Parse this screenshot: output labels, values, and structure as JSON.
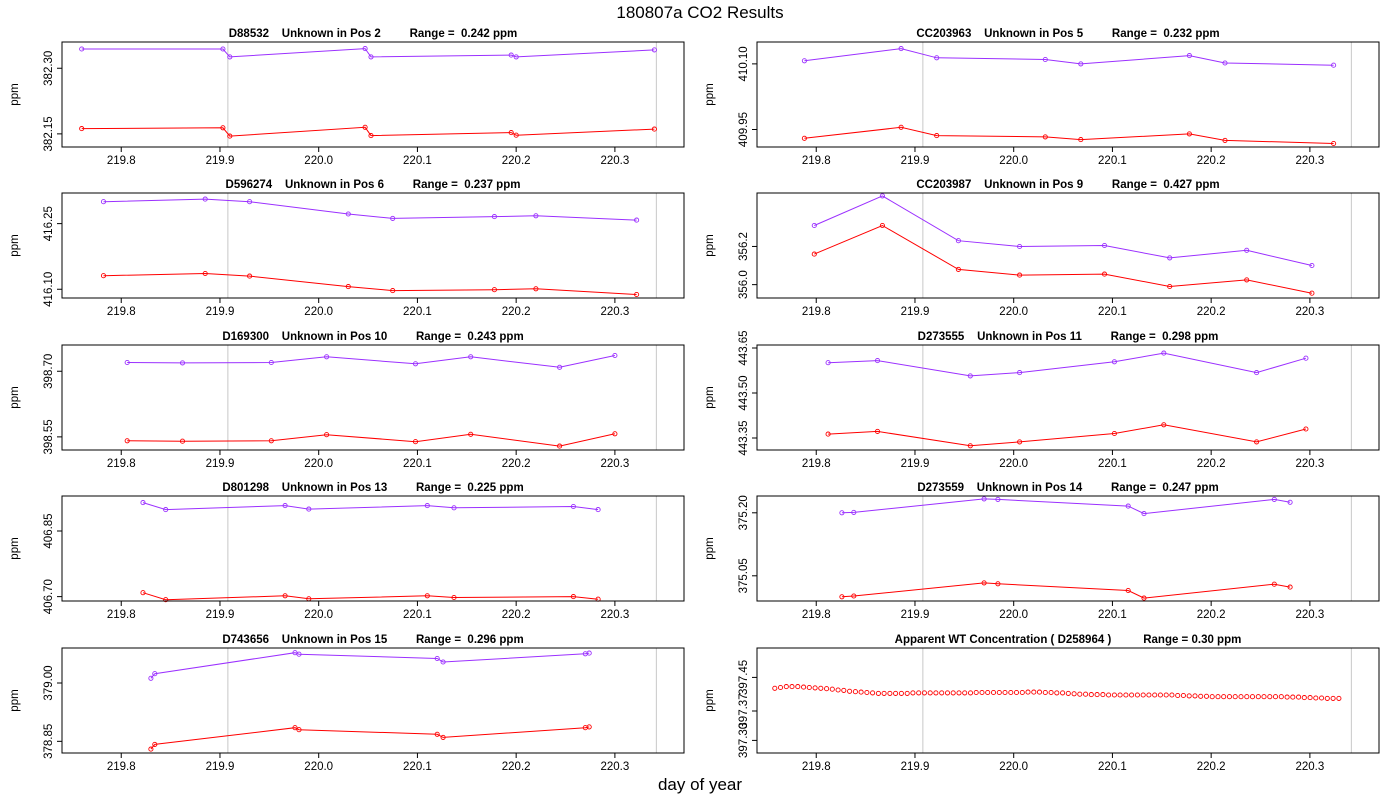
{
  "figure": {
    "title": "180807a  CO2 Results",
    "xlabel": "day of year"
  },
  "chart_data": [
    {
      "type": "line",
      "title": "D88532    Unknown in Pos 2         Range =  0.242 ppm",
      "ylabel": "ppm",
      "xlim": [
        219.74,
        220.37
      ],
      "ylim": [
        382.12,
        382.36
      ],
      "xticks": [
        "219.8",
        "219.9",
        "220.0",
        "220.1",
        "220.2",
        "220.3"
      ],
      "yticks": [
        "382.15",
        "382.30"
      ],
      "vlines": [
        219.908,
        220.342
      ],
      "series": [
        {
          "name": "upper",
          "color": "#9b30ff",
          "x": [
            219.76,
            219.903,
            219.91,
            220.047,
            220.053,
            220.195,
            220.2,
            220.34
          ],
          "y": [
            382.344,
            382.344,
            382.326,
            382.345,
            382.326,
            382.33,
            382.326,
            382.342
          ]
        },
        {
          "name": "lower",
          "color": "#ff0000",
          "x": [
            219.76,
            219.903,
            219.91,
            220.047,
            220.053,
            220.195,
            220.2,
            220.34
          ],
          "y": [
            382.162,
            382.164,
            382.145,
            382.165,
            382.146,
            382.153,
            382.147,
            382.161
          ]
        }
      ]
    },
    {
      "type": "line",
      "title": "CC203963    Unknown in Pos 5         Range =  0.232 ppm",
      "ylabel": "ppm",
      "xlim": [
        219.74,
        220.37
      ],
      "ylim": [
        409.91,
        410.15
      ],
      "xticks": [
        "219.8",
        "219.9",
        "220.0",
        "220.1",
        "220.2",
        "220.3"
      ],
      "yticks": [
        "409.95",
        "410.10"
      ],
      "vlines": [
        219.908,
        220.342
      ],
      "series": [
        {
          "name": "upper",
          "color": "#9b30ff",
          "x": [
            219.788,
            219.886,
            219.922,
            220.032,
            220.068,
            220.178,
            220.214,
            220.324
          ],
          "y": [
            410.107,
            410.135,
            410.114,
            410.11,
            410.1,
            410.119,
            410.102,
            410.097
          ]
        },
        {
          "name": "lower",
          "color": "#ff0000",
          "x": [
            219.788,
            219.886,
            219.922,
            220.032,
            220.068,
            220.178,
            220.214,
            220.324
          ],
          "y": [
            409.93,
            409.955,
            409.936,
            409.933,
            409.927,
            409.94,
            409.925,
            409.918
          ]
        }
      ]
    },
    {
      "type": "line",
      "title": "D596274    Unknown in Pos 6         Range =  0.237 ppm",
      "ylabel": "ppm",
      "xlim": [
        219.74,
        220.37
      ],
      "ylim": [
        416.08,
        416.32
      ],
      "xticks": [
        "219.8",
        "219.9",
        "220.0",
        "220.1",
        "220.2",
        "220.3"
      ],
      "yticks": [
        "416.10",
        "416.25"
      ],
      "vlines": [
        219.908,
        220.342
      ],
      "series": [
        {
          "name": "upper",
          "color": "#9b30ff",
          "x": [
            219.782,
            219.885,
            219.93,
            220.03,
            220.075,
            220.178,
            220.22,
            220.322
          ],
          "y": [
            416.3,
            416.306,
            416.3,
            416.272,
            416.262,
            416.266,
            416.268,
            416.258
          ]
        },
        {
          "name": "lower",
          "color": "#ff0000",
          "x": [
            219.782,
            219.885,
            219.93,
            220.03,
            220.075,
            220.178,
            220.22,
            220.322
          ],
          "y": [
            416.131,
            416.136,
            416.13,
            416.106,
            416.097,
            416.099,
            416.101,
            416.088
          ]
        }
      ]
    },
    {
      "type": "line",
      "title": "CC203987    Unknown in Pos 9         Range =  0.427 ppm",
      "ylabel": "ppm",
      "xlim": [
        219.74,
        220.37
      ],
      "ylim": [
        355.93,
        356.48
      ],
      "xticks": [
        "219.8",
        "219.9",
        "220.0",
        "220.1",
        "220.2",
        "220.3"
      ],
      "yticks": [
        "356.0",
        "356.2"
      ],
      "vlines": [
        219.908,
        220.342
      ],
      "series": [
        {
          "name": "upper",
          "color": "#9b30ff",
          "x": [
            219.798,
            219.867,
            219.944,
            220.006,
            220.092,
            220.158,
            220.236,
            220.302
          ],
          "y": [
            356.31,
            356.465,
            356.23,
            356.2,
            356.205,
            356.14,
            356.18,
            356.1
          ]
        },
        {
          "name": "lower",
          "color": "#ff0000",
          "x": [
            219.798,
            219.867,
            219.944,
            220.006,
            220.092,
            220.158,
            220.236,
            220.302
          ],
          "y": [
            356.16,
            356.31,
            356.08,
            356.05,
            356.055,
            355.99,
            356.025,
            355.955
          ]
        }
      ]
    },
    {
      "type": "line",
      "title": "D169300    Unknown in Pos 10         Range =  0.243 ppm",
      "ylabel": "ppm",
      "xlim": [
        219.74,
        220.37
      ],
      "ylim": [
        398.52,
        398.76
      ],
      "xticks": [
        "219.8",
        "219.9",
        "220.0",
        "220.1",
        "220.2",
        "220.3"
      ],
      "yticks": [
        "398.55",
        "398.70"
      ],
      "vlines": [
        219.908,
        220.342
      ],
      "series": [
        {
          "name": "upper",
          "color": "#9b30ff",
          "x": [
            219.806,
            219.862,
            219.952,
            220.008,
            220.098,
            220.154,
            220.244,
            220.3
          ],
          "y": [
            398.72,
            398.719,
            398.72,
            398.733,
            398.717,
            398.733,
            398.709,
            398.736
          ]
        },
        {
          "name": "lower",
          "color": "#ff0000",
          "x": [
            219.806,
            219.862,
            219.952,
            220.008,
            220.098,
            220.154,
            220.244,
            220.3
          ],
          "y": [
            398.541,
            398.54,
            398.541,
            398.555,
            398.539,
            398.556,
            398.529,
            398.557
          ]
        }
      ]
    },
    {
      "type": "line",
      "title": "D273555    Unknown in Pos 11         Range =  0.298 ppm",
      "ylabel": "ppm",
      "xlim": [
        219.74,
        220.37
      ],
      "ylim": [
        443.31,
        443.66
      ],
      "xticks": [
        "219.8",
        "219.9",
        "220.0",
        "220.1",
        "220.2",
        "220.3"
      ],
      "yticks": [
        "443.35",
        "443.50",
        "443.65"
      ],
      "vlines": [
        219.908,
        220.342
      ],
      "series": [
        {
          "name": "upper",
          "color": "#9b30ff",
          "x": [
            219.812,
            219.862,
            219.956,
            220.006,
            220.102,
            220.152,
            220.246,
            220.296
          ],
          "y": [
            443.601,
            443.608,
            443.557,
            443.568,
            443.604,
            443.633,
            443.568,
            443.616
          ]
        },
        {
          "name": "lower",
          "color": "#ff0000",
          "x": [
            219.812,
            219.862,
            219.956,
            220.006,
            220.102,
            220.152,
            220.246,
            220.296
          ],
          "y": [
            443.363,
            443.372,
            443.324,
            443.337,
            443.365,
            443.394,
            443.337,
            443.38
          ]
        }
      ]
    },
    {
      "type": "line",
      "title": "D801298    Unknown in Pos 13         Range =  0.225 ppm",
      "ylabel": "ppm",
      "xlim": [
        219.74,
        220.37
      ],
      "ylim": [
        406.69,
        406.93
      ],
      "xticks": [
        "219.8",
        "219.9",
        "220.0",
        "220.1",
        "220.2",
        "220.3"
      ],
      "yticks": [
        "406.70",
        "406.85"
      ],
      "vlines": [
        219.908,
        220.342
      ],
      "series": [
        {
          "name": "upper",
          "color": "#9b30ff",
          "x": [
            219.822,
            219.845,
            219.966,
            219.99,
            220.11,
            220.137,
            220.258,
            220.283
          ],
          "y": [
            406.915,
            406.899,
            406.908,
            406.9,
            406.908,
            406.903,
            406.906,
            406.899
          ]
        },
        {
          "name": "lower",
          "color": "#ff0000",
          "x": [
            219.822,
            219.845,
            219.966,
            219.99,
            220.11,
            220.137,
            220.258,
            220.283
          ],
          "y": [
            406.709,
            406.693,
            406.702,
            406.695,
            406.702,
            406.698,
            406.7,
            406.694
          ]
        }
      ]
    },
    {
      "type": "line",
      "title": "D273559    Unknown in Pos 14         Range =  0.247 ppm",
      "ylabel": "ppm",
      "xlim": [
        219.74,
        220.37
      ],
      "ylim": [
        374.99,
        375.24
      ],
      "xticks": [
        "219.8",
        "219.9",
        "220.0",
        "220.1",
        "220.2",
        "220.3"
      ],
      "yticks": [
        "375.05",
        "375.20"
      ],
      "vlines": [
        219.908,
        220.342
      ],
      "series": [
        {
          "name": "upper",
          "color": "#9b30ff",
          "x": [
            219.826,
            219.838,
            219.97,
            219.984,
            220.116,
            220.132,
            220.264,
            220.28
          ],
          "y": [
            375.2,
            375.201,
            375.233,
            375.232,
            375.216,
            375.198,
            375.232,
            375.225
          ]
        },
        {
          "name": "lower",
          "color": "#ff0000",
          "x": [
            219.826,
            219.838,
            219.97,
            219.984,
            220.116,
            220.132,
            220.264,
            220.28
          ],
          "y": [
            375,
            375.002,
            375.033,
            375.031,
            375.015,
            374.997,
            375.03,
            375.023
          ]
        }
      ]
    },
    {
      "type": "line",
      "title": "D743656    Unknown in Pos 15         Range =  0.296 ppm",
      "ylabel": "ppm",
      "xlim": [
        219.74,
        220.37
      ],
      "ylim": [
        378.82,
        379.09
      ],
      "xticks": [
        "219.8",
        "219.9",
        "220.0",
        "220.1",
        "220.2",
        "220.3"
      ],
      "yticks": [
        "378.85",
        "379.00"
      ],
      "vlines": [
        219.908,
        220.342
      ],
      "series": [
        {
          "name": "upper",
          "color": "#9b30ff",
          "x": [
            219.83,
            219.834,
            219.976,
            219.98,
            220.12,
            220.126,
            220.27,
            220.274
          ],
          "y": [
            379.012,
            379.024,
            379.078,
            379.074,
            379.063,
            379.054,
            379.075,
            379.077
          ]
        },
        {
          "name": "lower",
          "color": "#ff0000",
          "x": [
            219.83,
            219.834,
            219.976,
            219.98,
            220.12,
            220.126,
            220.27,
            220.274
          ],
          "y": [
            378.83,
            378.842,
            378.885,
            378.88,
            378.868,
            378.86,
            378.885,
            378.887
          ]
        }
      ]
    },
    {
      "type": "scatter",
      "title": "Apparent WT Concentration ( D258964 )          Range = 0.30 ppm",
      "ylabel": "ppm",
      "xlim": [
        219.74,
        220.37
      ],
      "ylim": [
        397.27,
        397.52
      ],
      "xticks": [
        "219.8",
        "219.9",
        "220.0",
        "220.1",
        "220.2",
        "220.3"
      ],
      "yticks": [
        "397.30",
        "397.37",
        "397.45"
      ],
      "vlines": [
        219.908,
        220.342
      ],
      "series": [
        {
          "name": "wt",
          "color": "#ff0000",
          "x_start": 219.758,
          "x_step": 0.00583,
          "count": 99,
          "y": [
            397.424,
            397.426,
            397.428,
            397.428,
            397.428,
            397.427,
            397.426,
            397.425,
            397.424,
            397.423,
            397.422,
            397.42,
            397.419,
            397.417,
            397.416,
            397.415,
            397.414,
            397.413,
            397.412,
            397.412,
            397.412,
            397.412,
            397.412,
            397.412,
            397.413,
            397.413,
            397.413,
            397.413,
            397.413,
            397.413,
            397.413,
            397.413,
            397.413,
            397.413,
            397.413,
            397.414,
            397.414,
            397.414,
            397.414,
            397.414,
            397.414,
            397.414,
            397.414,
            397.414,
            397.415,
            397.415,
            397.415,
            397.414,
            397.414,
            397.413,
            397.413,
            397.412,
            397.411,
            397.41,
            397.41,
            397.409,
            397.409,
            397.409,
            397.408,
            397.408,
            397.408,
            397.408,
            397.408,
            397.408,
            397.408,
            397.408,
            397.408,
            397.408,
            397.408,
            397.408,
            397.407,
            397.407,
            397.406,
            397.406,
            397.405,
            397.405,
            397.404,
            397.404,
            397.404,
            397.404,
            397.404,
            397.404,
            397.404,
            397.404,
            397.404,
            397.404,
            397.404,
            397.404,
            397.404,
            397.403,
            397.403,
            397.403,
            397.402,
            397.402,
            397.401,
            397.401,
            397.4,
            397.4,
            397.4
          ]
        }
      ]
    }
  ]
}
